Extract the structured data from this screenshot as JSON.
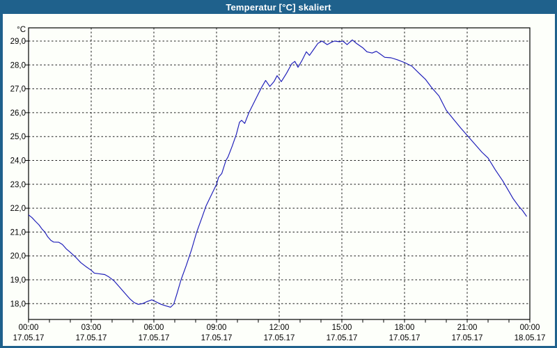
{
  "window": {
    "title": "Temperatur [°C] skaliert"
  },
  "colors": {
    "titlebar_bg": "#1f618c",
    "titlebar_text": "#ffffff",
    "window_bg": "#fdfffa",
    "frame": "#000000",
    "grid": "#1c1c1c",
    "line": "#1a1ab8",
    "label": "#000000"
  },
  "chart_data": {
    "type": "line",
    "title": "Temperatur [°C] skaliert",
    "grid": "dashed",
    "legend": "none",
    "y_axis": {
      "unit_label": "°C",
      "min": 18,
      "max": 29,
      "tick_step": 1,
      "ticks": [
        {
          "value": 29,
          "label": "29,0"
        },
        {
          "value": 28,
          "label": "28,0"
        },
        {
          "value": 27,
          "label": "27,0"
        },
        {
          "value": 26,
          "label": "26,0"
        },
        {
          "value": 25,
          "label": "25,0"
        },
        {
          "value": 24,
          "label": "24,0"
        },
        {
          "value": 23,
          "label": "23,0"
        },
        {
          "value": 22,
          "label": "22,0"
        },
        {
          "value": 21,
          "label": "21,0"
        },
        {
          "value": 20,
          "label": "20,0"
        },
        {
          "value": 19,
          "label": "19,0"
        },
        {
          "value": 18,
          "label": "18,0"
        }
      ]
    },
    "x_axis": {
      "min_hour": 0,
      "max_hour": 24,
      "gridline_hours": [
        3,
        6,
        9,
        12,
        15,
        18,
        21
      ],
      "minor_tick_every_hours": 1,
      "ticks": [
        {
          "hour": 0,
          "time": "00:00",
          "date": "17.05.17"
        },
        {
          "hour": 3,
          "time": "03:00",
          "date": "17.05.17"
        },
        {
          "hour": 6,
          "time": "06:00",
          "date": "17.05.17"
        },
        {
          "hour": 9,
          "time": "09:00",
          "date": "17.05.17"
        },
        {
          "hour": 12,
          "time": "12:00",
          "date": "17.05.17"
        },
        {
          "hour": 15,
          "time": "15:00",
          "date": "17.05.17"
        },
        {
          "hour": 18,
          "time": "18:00",
          "date": "17.05.17"
        },
        {
          "hour": 21,
          "time": "21:00",
          "date": "17.05.17"
        },
        {
          "hour": 24,
          "time": "00:00",
          "date": "18.05.17"
        }
      ]
    },
    "series": [
      {
        "name": "Temperatur [°C]",
        "color": "#1a1ab8",
        "points": [
          [
            0,
            21.72
          ],
          [
            0.17,
            21.6
          ],
          [
            0.33,
            21.45
          ],
          [
            0.5,
            21.3
          ],
          [
            0.65,
            21.12
          ],
          [
            0.78,
            21.0
          ],
          [
            0.92,
            20.8
          ],
          [
            1.07,
            20.65
          ],
          [
            1.2,
            20.58
          ],
          [
            1.45,
            20.57
          ],
          [
            1.62,
            20.48
          ],
          [
            1.8,
            20.3
          ],
          [
            2.0,
            20.15
          ],
          [
            2.25,
            19.95
          ],
          [
            2.5,
            19.72
          ],
          [
            2.75,
            19.55
          ],
          [
            3.0,
            19.4
          ],
          [
            3.15,
            19.28
          ],
          [
            3.4,
            19.25
          ],
          [
            3.65,
            19.22
          ],
          [
            3.85,
            19.12
          ],
          [
            4.1,
            18.95
          ],
          [
            4.35,
            18.7
          ],
          [
            4.6,
            18.45
          ],
          [
            4.85,
            18.2
          ],
          [
            5.05,
            18.05
          ],
          [
            5.25,
            17.97
          ],
          [
            5.45,
            18.0
          ],
          [
            5.65,
            18.08
          ],
          [
            5.9,
            18.16
          ],
          [
            6.1,
            18.08
          ],
          [
            6.35,
            17.97
          ],
          [
            6.6,
            17.9
          ],
          [
            6.8,
            17.85
          ],
          [
            6.95,
            17.98
          ],
          [
            7.1,
            18.4
          ],
          [
            7.3,
            19.0
          ],
          [
            7.55,
            19.6
          ],
          [
            7.8,
            20.25
          ],
          [
            8.05,
            21.0
          ],
          [
            8.3,
            21.6
          ],
          [
            8.5,
            22.1
          ],
          [
            8.75,
            22.55
          ],
          [
            9.0,
            23.0
          ],
          [
            9.1,
            23.3
          ],
          [
            9.25,
            23.45
          ],
          [
            9.45,
            24.0
          ],
          [
            9.55,
            24.15
          ],
          [
            9.75,
            24.6
          ],
          [
            9.95,
            25.1
          ],
          [
            10.1,
            25.6
          ],
          [
            10.2,
            25.68
          ],
          [
            10.35,
            25.55
          ],
          [
            10.55,
            26.0
          ],
          [
            10.75,
            26.35
          ],
          [
            10.95,
            26.7
          ],
          [
            11.15,
            27.05
          ],
          [
            11.35,
            27.35
          ],
          [
            11.55,
            27.1
          ],
          [
            11.75,
            27.3
          ],
          [
            11.9,
            27.55
          ],
          [
            12.1,
            27.3
          ],
          [
            12.35,
            27.65
          ],
          [
            12.6,
            28.05
          ],
          [
            12.75,
            28.15
          ],
          [
            12.9,
            27.9
          ],
          [
            13.1,
            28.2
          ],
          [
            13.3,
            28.55
          ],
          [
            13.45,
            28.4
          ],
          [
            13.65,
            28.65
          ],
          [
            13.85,
            28.9
          ],
          [
            14.05,
            29.0
          ],
          [
            14.3,
            28.85
          ],
          [
            14.5,
            28.95
          ],
          [
            14.65,
            29.0
          ],
          [
            14.9,
            28.97
          ],
          [
            15.05,
            29.0
          ],
          [
            15.25,
            28.85
          ],
          [
            15.5,
            29.05
          ],
          [
            15.7,
            28.9
          ],
          [
            16.0,
            28.72
          ],
          [
            16.2,
            28.55
          ],
          [
            16.45,
            28.5
          ],
          [
            16.65,
            28.57
          ],
          [
            16.85,
            28.45
          ],
          [
            17.05,
            28.32
          ],
          [
            17.35,
            28.3
          ],
          [
            17.65,
            28.22
          ],
          [
            18.0,
            28.1
          ],
          [
            18.35,
            27.95
          ],
          [
            18.7,
            27.65
          ],
          [
            19.0,
            27.4
          ],
          [
            19.3,
            27.05
          ],
          [
            19.65,
            26.7
          ],
          [
            20.0,
            26.1
          ],
          [
            20.35,
            25.72
          ],
          [
            20.7,
            25.35
          ],
          [
            21.0,
            25.05
          ],
          [
            21.35,
            24.7
          ],
          [
            21.7,
            24.35
          ],
          [
            22.0,
            24.1
          ],
          [
            22.35,
            23.6
          ],
          [
            22.7,
            23.15
          ],
          [
            23.0,
            22.7
          ],
          [
            23.2,
            22.4
          ],
          [
            23.45,
            22.1
          ],
          [
            23.65,
            21.9
          ],
          [
            23.85,
            21.65
          ]
        ]
      }
    ]
  }
}
